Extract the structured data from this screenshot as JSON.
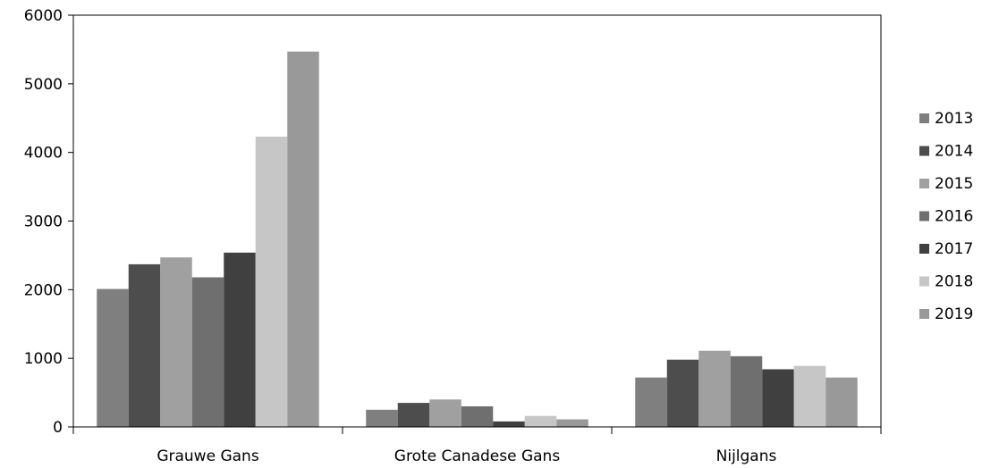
{
  "chart_data": {
    "type": "bar",
    "title": "",
    "xlabel": "",
    "ylabel": "",
    "ylim": [
      0,
      6000
    ],
    "yticks": [
      0,
      1000,
      2000,
      3000,
      4000,
      5000,
      6000
    ],
    "ytick_labels": [
      "0",
      "1000",
      "2000",
      "3000",
      "4000",
      "5000",
      "6000"
    ],
    "categories": [
      "Grauwe Gans",
      "Grote Canadese Gans",
      "Nijlgans"
    ],
    "series": [
      {
        "name": "2013",
        "color": "#7f7f7f",
        "values": [
          2010,
          250,
          720
        ]
      },
      {
        "name": "2014",
        "color": "#4d4d4d",
        "values": [
          2370,
          350,
          980
        ]
      },
      {
        "name": "2015",
        "color": "#a0a0a0",
        "values": [
          2470,
          400,
          1110
        ]
      },
      {
        "name": "2016",
        "color": "#6f6f6f",
        "values": [
          2180,
          300,
          1030
        ]
      },
      {
        "name": "2017",
        "color": "#404040",
        "values": [
          2540,
          80,
          840
        ]
      },
      {
        "name": "2018",
        "color": "#c6c6c6",
        "values": [
          4230,
          160,
          890
        ]
      },
      {
        "name": "2019",
        "color": "#999999",
        "values": [
          5470,
          110,
          720
        ]
      }
    ],
    "grid": false,
    "legend_position": "right"
  }
}
